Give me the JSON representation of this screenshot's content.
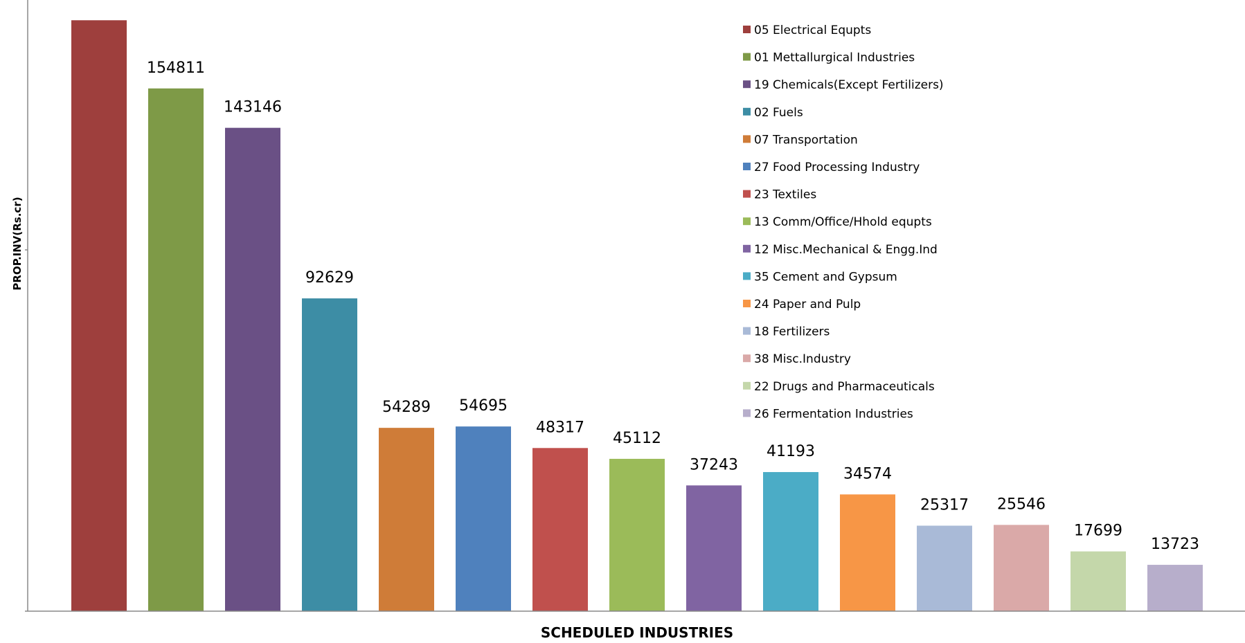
{
  "chart_data": {
    "type": "bar",
    "title": "",
    "xlabel": "SCHEDULED INDUSTRIES",
    "ylabel": "PROP.INV(Rs.cr)",
    "ylim": [
      0,
      180000
    ],
    "grid": false,
    "legend_position": "top-right",
    "categories": [
      "05 Electrical Equpts",
      "01 Mettallurgical Industries",
      "19 Chemicals(Except Fertilizers)",
      "02 Fuels",
      "07 Transportation",
      "27 Food Processing Industry",
      "23 Textiles",
      "13 Comm/Office/Hhold equpts",
      "12 Misc.Mechanical & Engg.Ind",
      "35 Cement and Gypsum",
      "24 Paper and Pulp",
      "18 Fertilizers",
      "38 Misc.Industry",
      "22 Drugs and Pharmaceuticals",
      "26 Fermentation Industries"
    ],
    "values": [
      175000,
      154811,
      143146,
      92629,
      54289,
      54695,
      48317,
      45112,
      37243,
      41193,
      34574,
      25317,
      25546,
      17699,
      13723
    ],
    "value_labels": [
      "",
      "154811",
      "143146",
      "92629",
      "54289",
      "54695",
      "48317",
      "45112",
      "37243",
      "41193",
      "34574",
      "25317",
      "25546",
      "17699",
      "13723"
    ],
    "colors": [
      "#9E3F3D",
      "#7E9A47",
      "#6A5085",
      "#3D8DA5",
      "#CF7C38",
      "#4F81BD",
      "#C0504D",
      "#9BBB59",
      "#8064A2",
      "#4BACC6",
      "#F79646",
      "#A9BAD7",
      "#DAA9A8",
      "#C4D7AA",
      "#B7AECB"
    ]
  }
}
